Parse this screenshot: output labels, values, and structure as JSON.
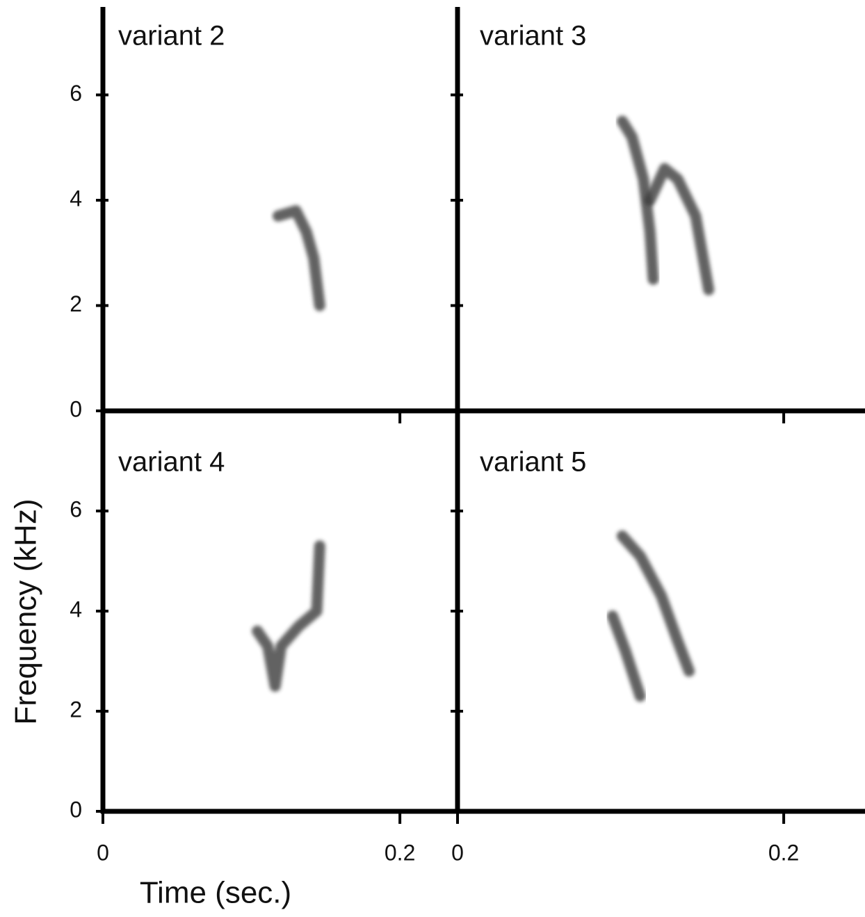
{
  "figure": {
    "xlabel": "Time (sec.)",
    "ylabel": "Frequency (kHz)"
  },
  "chart_data": [
    {
      "type": "line",
      "title": "variant 2",
      "xlim": [
        0,
        0.236
      ],
      "ylim": [
        0,
        7.67
      ],
      "xticks": [
        0,
        0.2
      ],
      "yticks": [
        0,
        2,
        4,
        6
      ],
      "color": "#3a3a3a",
      "series": [
        {
          "x": [
            0.118,
            0.13,
            0.137,
            0.142,
            0.146
          ],
          "values": [
            3.7,
            3.8,
            3.4,
            2.9,
            2.0
          ]
        }
      ]
    },
    {
      "type": "line",
      "title": "variant 3",
      "xlim": [
        0,
        0.246
      ],
      "ylim": [
        0,
        7.67
      ],
      "xticks": [
        0,
        0.2
      ],
      "yticks": [
        0,
        2,
        4,
        6
      ],
      "color": "#3a3a3a",
      "series": [
        {
          "x": [
            0.101,
            0.107,
            0.114,
            0.118,
            0.12
          ],
          "values": [
            5.5,
            5.2,
            4.4,
            3.4,
            2.5
          ]
        },
        {
          "x": [
            0.118,
            0.127,
            0.135,
            0.146,
            0.154
          ],
          "values": [
            4.0,
            4.6,
            4.4,
            3.7,
            2.3
          ]
        }
      ]
    },
    {
      "type": "line",
      "title": "variant 4",
      "xlim": [
        0,
        0.236
      ],
      "ylim": [
        0,
        8.0
      ],
      "xticks": [
        0,
        0.2
      ],
      "yticks": [
        0,
        2,
        4,
        6
      ],
      "color": "#3a3a3a",
      "series": [
        {
          "x": [
            0.104,
            0.111,
            0.116,
            0.12,
            0.132,
            0.144,
            0.146
          ],
          "values": [
            3.6,
            3.3,
            2.5,
            3.3,
            3.7,
            4.0,
            5.3
          ]
        }
      ]
    },
    {
      "type": "line",
      "title": "variant 5",
      "xlim": [
        0,
        0.246
      ],
      "ylim": [
        0,
        8.0
      ],
      "xticks": [
        0,
        0.2
      ],
      "yticks": [
        0,
        2,
        4,
        6
      ],
      "color": "#3a3a3a",
      "series": [
        {
          "x": [
            0.095,
            0.103,
            0.112
          ],
          "values": [
            3.9,
            3.2,
            2.3
          ]
        },
        {
          "x": [
            0.101,
            0.112,
            0.125,
            0.135,
            0.142
          ],
          "values": [
            5.5,
            5.1,
            4.3,
            3.4,
            2.8
          ]
        }
      ]
    }
  ]
}
